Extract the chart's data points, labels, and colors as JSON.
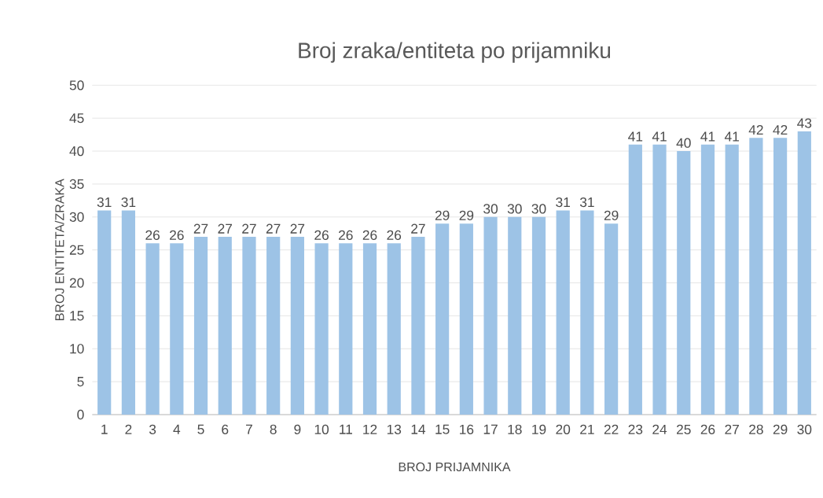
{
  "chart_data": {
    "type": "bar",
    "title": "Broj zraka/entiteta po prijamniku",
    "xlabel": "BROJ PRIJAMNIKA",
    "ylabel": "BROJ ENTITETA/ZRAKA",
    "categories": [
      "1",
      "2",
      "3",
      "4",
      "5",
      "6",
      "7",
      "8",
      "9",
      "10",
      "11",
      "12",
      "13",
      "14",
      "15",
      "16",
      "17",
      "18",
      "19",
      "20",
      "21",
      "22",
      "23",
      "24",
      "25",
      "26",
      "27",
      "28",
      "29",
      "30"
    ],
    "values": [
      31,
      31,
      26,
      26,
      27,
      27,
      27,
      27,
      27,
      26,
      26,
      26,
      26,
      27,
      29,
      29,
      30,
      30,
      30,
      31,
      31,
      29,
      41,
      41,
      40,
      41,
      41,
      42,
      42,
      43
    ],
    "color": "#9dc3e6",
    "ylim": [
      0,
      50
    ],
    "yticks": [
      0,
      5,
      10,
      15,
      20,
      25,
      30,
      35,
      40,
      45,
      50
    ],
    "grid": "y",
    "data_labels": true
  }
}
